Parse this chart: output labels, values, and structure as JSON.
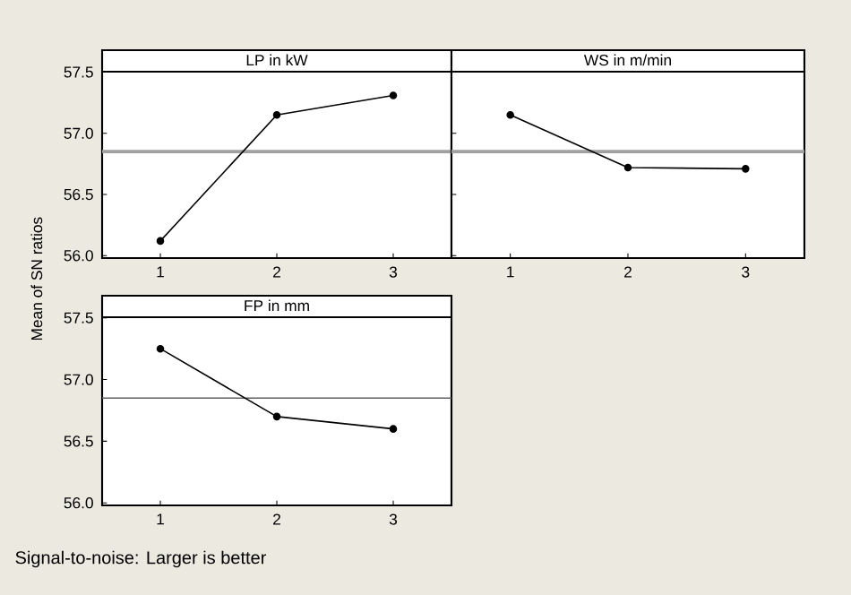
{
  "chart_data": [
    {
      "type": "line",
      "title": "LP in kW",
      "ylabel": "Mean of SN ratios",
      "categories": [
        "1",
        "2",
        "3"
      ],
      "values": [
        56.12,
        57.15,
        57.31
      ],
      "color": "#000000",
      "marker": "circle",
      "ylim": [
        55.98,
        57.68
      ],
      "yticks": [
        {
          "value": 56.0,
          "label": "56.0"
        },
        {
          "value": 56.5,
          "label": "56.5"
        },
        {
          "value": 57.0,
          "label": "57.0"
        },
        {
          "value": 57.5,
          "label": "57.5"
        }
      ],
      "ref_lines": [
        {
          "axis": "y",
          "value": 56.85,
          "color": "#a0a0a0"
        }
      ]
    },
    {
      "type": "line",
      "title": "WS in m/min",
      "categories": [
        "1",
        "2",
        "3"
      ],
      "values": [
        57.15,
        56.72,
        56.71
      ],
      "color": "#000000",
      "marker": "circle",
      "ylim": [
        55.98,
        57.68
      ],
      "tick_labels": "x",
      "ref_lines": [
        {
          "axis": "y",
          "value": 56.85,
          "color": "#a0a0a0"
        }
      ]
    },
    {
      "type": "line",
      "title": "FP in mm",
      "categories": [
        "1",
        "2",
        "3"
      ],
      "values": [
        57.25,
        56.7,
        56.6
      ],
      "color": "#000000",
      "marker": "circle",
      "ylim": [
        55.98,
        57.68
      ],
      "yticks": [
        {
          "value": 56.0,
          "label": "56.0"
        },
        {
          "value": 56.5,
          "label": "56.5"
        },
        {
          "value": 57.0,
          "label": "57.0"
        },
        {
          "value": 57.5,
          "label": "57.5"
        }
      ],
      "ref_lines": [
        {
          "axis": "y",
          "value": 56.85,
          "color": "#606060"
        }
      ],
      "annotations": [
        "Signal-to-noise:  Larger is better"
      ]
    }
  ]
}
